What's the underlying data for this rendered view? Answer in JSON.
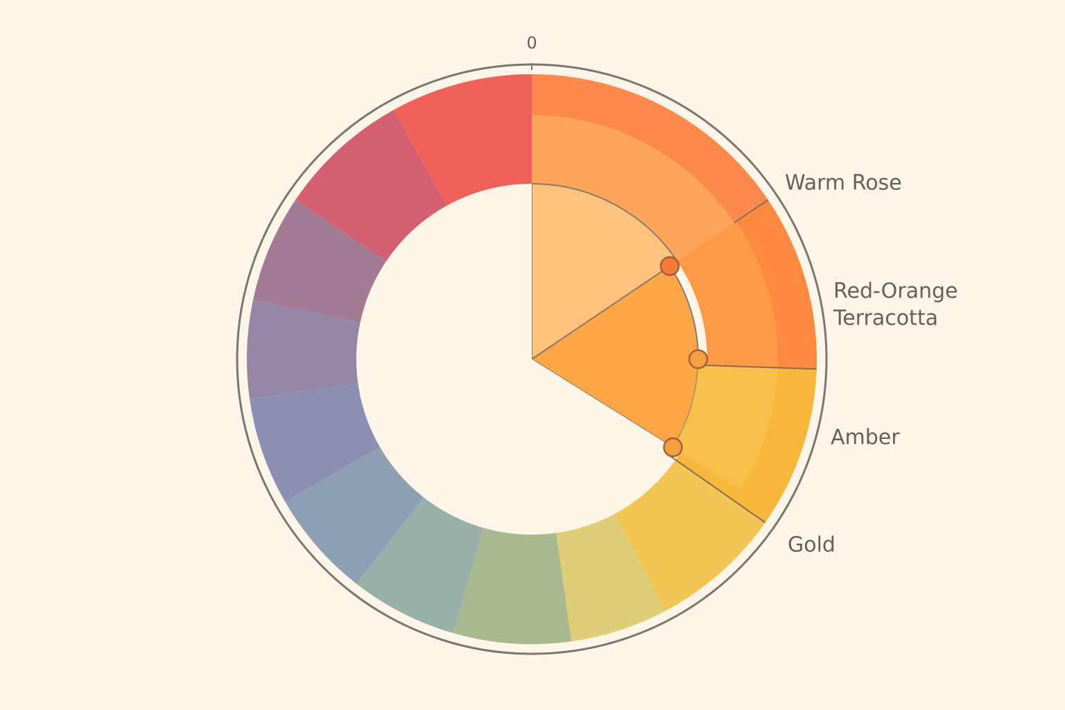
{
  "wheel": {
    "tick_label": "0",
    "labels": [
      [
        "Warm Rose"
      ],
      [
        "Red-Orange",
        "Terracotta"
      ],
      [
        "Amber"
      ],
      [
        "Gold"
      ]
    ]
  }
}
